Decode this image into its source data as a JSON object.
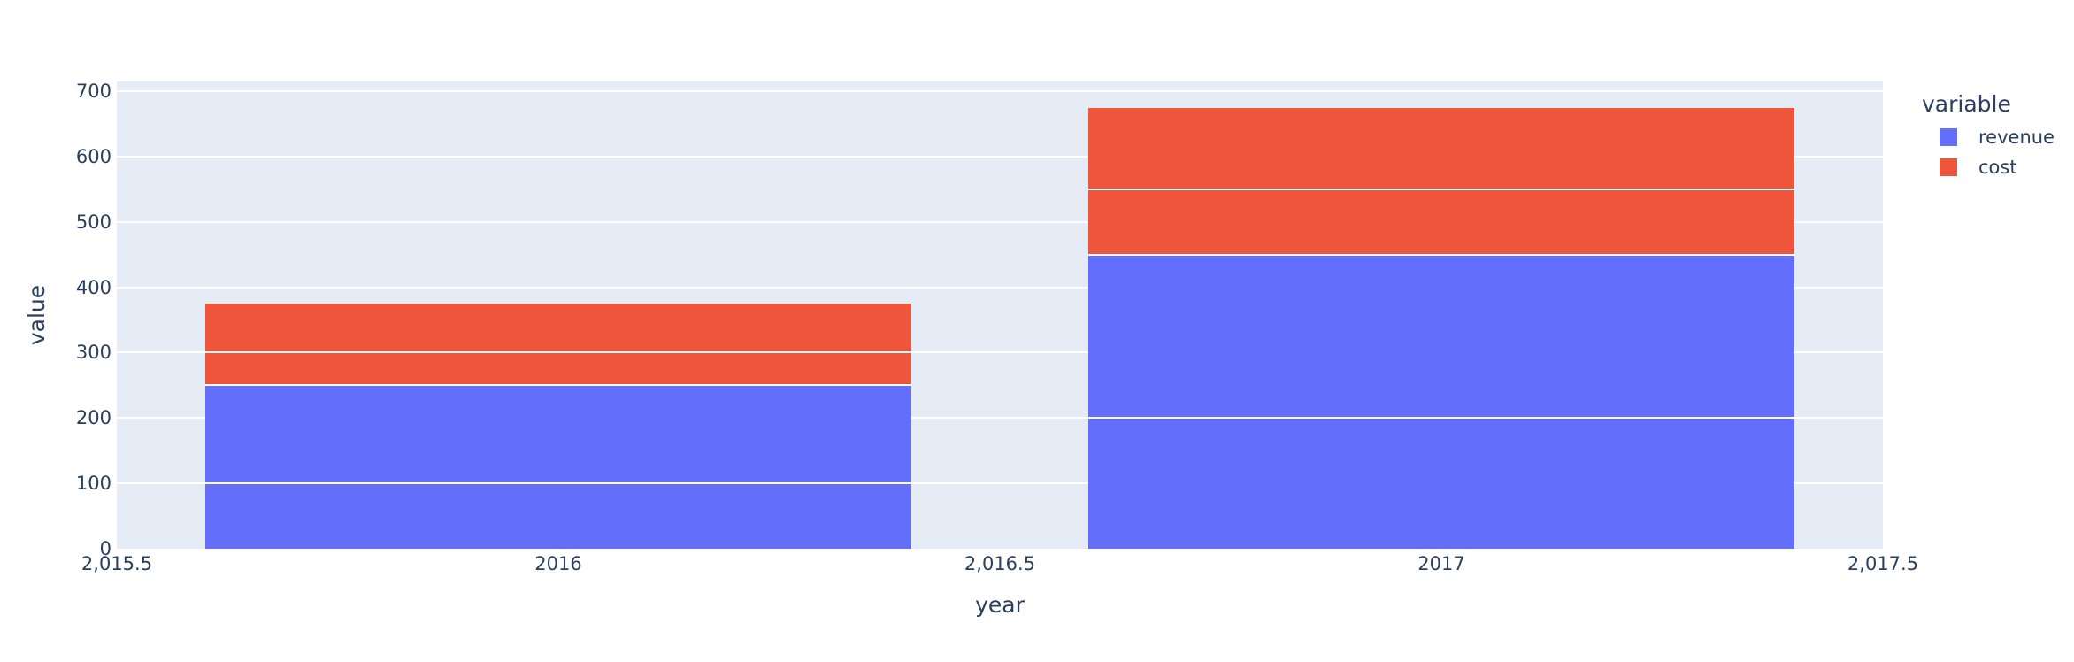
{
  "chart_data": {
    "type": "bar",
    "mode": "stacked",
    "title": "",
    "xlabel": "year",
    "ylabel": "value",
    "x": [
      2016,
      2017
    ],
    "bar_width": 0.8,
    "series": [
      {
        "name": "revenue",
        "color": "#636EFA",
        "segments": [
          [
            100,
            150
          ],
          [
            200,
            250
          ]
        ],
        "totals": [
          250,
          450
        ]
      },
      {
        "name": "cost",
        "color": "#EF553B",
        "segments": [
          [
            50,
            75
          ],
          [
            100,
            125
          ]
        ],
        "totals": [
          125,
          225
        ]
      }
    ],
    "stack_totals": [
      375,
      675
    ],
    "xlim": [
      2015.5,
      2017.5
    ],
    "ylim": [
      0,
      715
    ],
    "xticks": {
      "values": [
        2015.5,
        2016,
        2016.5,
        2017,
        2017.5
      ],
      "labels": [
        "2,015.5",
        "2016",
        "2,016.5",
        "2017",
        "2,017.5"
      ]
    },
    "yticks": {
      "values": [
        0,
        100,
        200,
        300,
        400,
        500,
        600,
        700
      ],
      "labels": [
        "0",
        "100",
        "200",
        "300",
        "400",
        "500",
        "600",
        "700"
      ]
    },
    "grid": {
      "y": true,
      "x": false
    },
    "legend": {
      "title": "variable",
      "position": "outside-right-top",
      "items": [
        {
          "label": "revenue",
          "color": "#636EFA"
        },
        {
          "label": "cost",
          "color": "#EF553B"
        }
      ]
    },
    "colors": {
      "plot_bg": "#E5ECF6",
      "paper_bg": "#FFFFFF",
      "font": "#2A3F5F",
      "grid": "#FFFFFF",
      "separator": "#FFFFFF"
    }
  }
}
